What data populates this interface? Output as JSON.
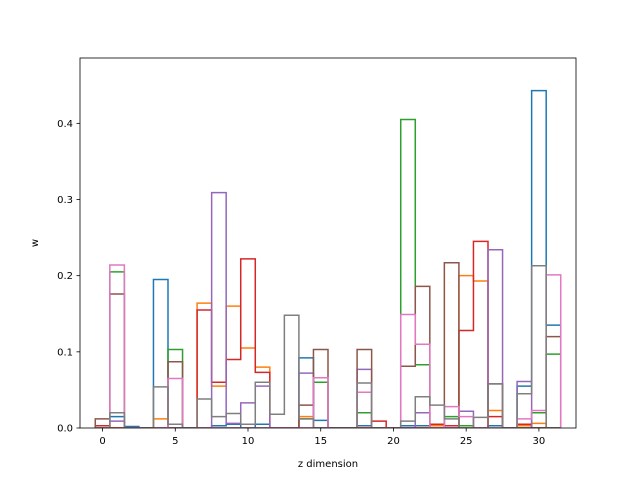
{
  "chart_data": {
    "type": "step-histogram",
    "title": "",
    "xlabel": "z dimension",
    "ylabel": "w",
    "xlim": [
      -1.55,
      32.55
    ],
    "ylim": [
      0,
      0.4858
    ],
    "xticks": [
      0,
      5,
      10,
      15,
      20,
      25,
      30
    ],
    "yticks": [
      0.0,
      0.1,
      0.2,
      0.3,
      0.4
    ],
    "ytick_labels": [
      "0.0",
      "0.1",
      "0.2",
      "0.3",
      "0.4"
    ],
    "bins": [
      0,
      1,
      2,
      3,
      4,
      5,
      6,
      7,
      8,
      9,
      10,
      11,
      12,
      13,
      14,
      15,
      16,
      17,
      18,
      19,
      20,
      21,
      22,
      23,
      24,
      25,
      26,
      27,
      28,
      29,
      30,
      31
    ],
    "grid": false,
    "legend": "none",
    "series": [
      {
        "color": "#1f77b4",
        "values": [
          0.003,
          0.015,
          0.002,
          0,
          0.195,
          0.005,
          0,
          0,
          0.003,
          0.005,
          0,
          0.005,
          0,
          0,
          0.092,
          0.01,
          0,
          0,
          0.003,
          0,
          0,
          0.003,
          0.003,
          0.003,
          0,
          0.003,
          0,
          0.003,
          0,
          0.055,
          0.443,
          0.135
        ]
      },
      {
        "color": "#ff7f0e",
        "values": [
          0,
          0,
          0,
          0,
          0.012,
          0,
          0,
          0.164,
          0.055,
          0.16,
          0.105,
          0.08,
          0,
          0,
          0.015,
          0,
          0,
          0,
          0,
          0,
          0,
          0,
          0,
          0.003,
          0,
          0.2,
          0.193,
          0.023,
          0,
          0.003,
          0.006,
          0
        ]
      },
      {
        "color": "#2ca02c",
        "values": [
          0,
          0.205,
          0,
          0,
          0,
          0.103,
          0,
          0,
          0,
          0,
          0,
          0,
          0,
          0,
          0.012,
          0.06,
          0,
          0,
          0.02,
          0,
          0,
          0.405,
          0.083,
          0,
          0.015,
          0.003,
          0,
          0,
          0,
          0,
          0.02,
          0.097
        ]
      },
      {
        "color": "#d62728",
        "values": [
          0.003,
          0,
          0,
          0,
          0,
          0,
          0,
          0.155,
          0.06,
          0.09,
          0.222,
          0.073,
          0,
          0,
          0,
          0,
          0,
          0,
          0,
          0.009,
          0,
          0,
          0,
          0.005,
          0.003,
          0.128,
          0.245,
          0.015,
          0,
          0.005,
          0,
          0
        ]
      },
      {
        "color": "#9467bd",
        "values": [
          0,
          0.009,
          0,
          0,
          0,
          0,
          0,
          0,
          0.309,
          0.006,
          0.033,
          0.055,
          0,
          0,
          0.072,
          0,
          0,
          0,
          0.077,
          0,
          0,
          0,
          0.02,
          0,
          0,
          0.022,
          0,
          0.234,
          0,
          0.061,
          0,
          0
        ]
      },
      {
        "color": "#8c564b",
        "values": [
          0.012,
          0.176,
          0,
          0,
          0,
          0.087,
          0,
          0,
          0,
          0,
          0,
          0,
          0,
          0,
          0.03,
          0.103,
          0,
          0,
          0.103,
          0,
          0,
          0.081,
          0.186,
          0,
          0.217,
          0,
          0,
          0.058,
          0,
          0,
          0,
          0.12
        ]
      },
      {
        "color": "#e377c2",
        "values": [
          0,
          0.214,
          0,
          0,
          0,
          0.065,
          0,
          0,
          0,
          0,
          0,
          0,
          0,
          0,
          0,
          0.066,
          0,
          0,
          0.047,
          0,
          0,
          0.149,
          0.11,
          0,
          0.028,
          0.015,
          0,
          0,
          0,
          0.012,
          0.023,
          0.201
        ]
      },
      {
        "color": "#7f7f7f",
        "values": [
          0,
          0.02,
          0,
          0,
          0.054,
          0.005,
          0,
          0.038,
          0.015,
          0.019,
          0.005,
          0.06,
          0.018,
          0.148,
          0.012,
          0,
          0,
          0,
          0.059,
          0,
          0,
          0.009,
          0.041,
          0.03,
          0.012,
          0,
          0.014,
          0.058,
          0,
          0.045,
          0.213,
          0
        ]
      }
    ]
  }
}
